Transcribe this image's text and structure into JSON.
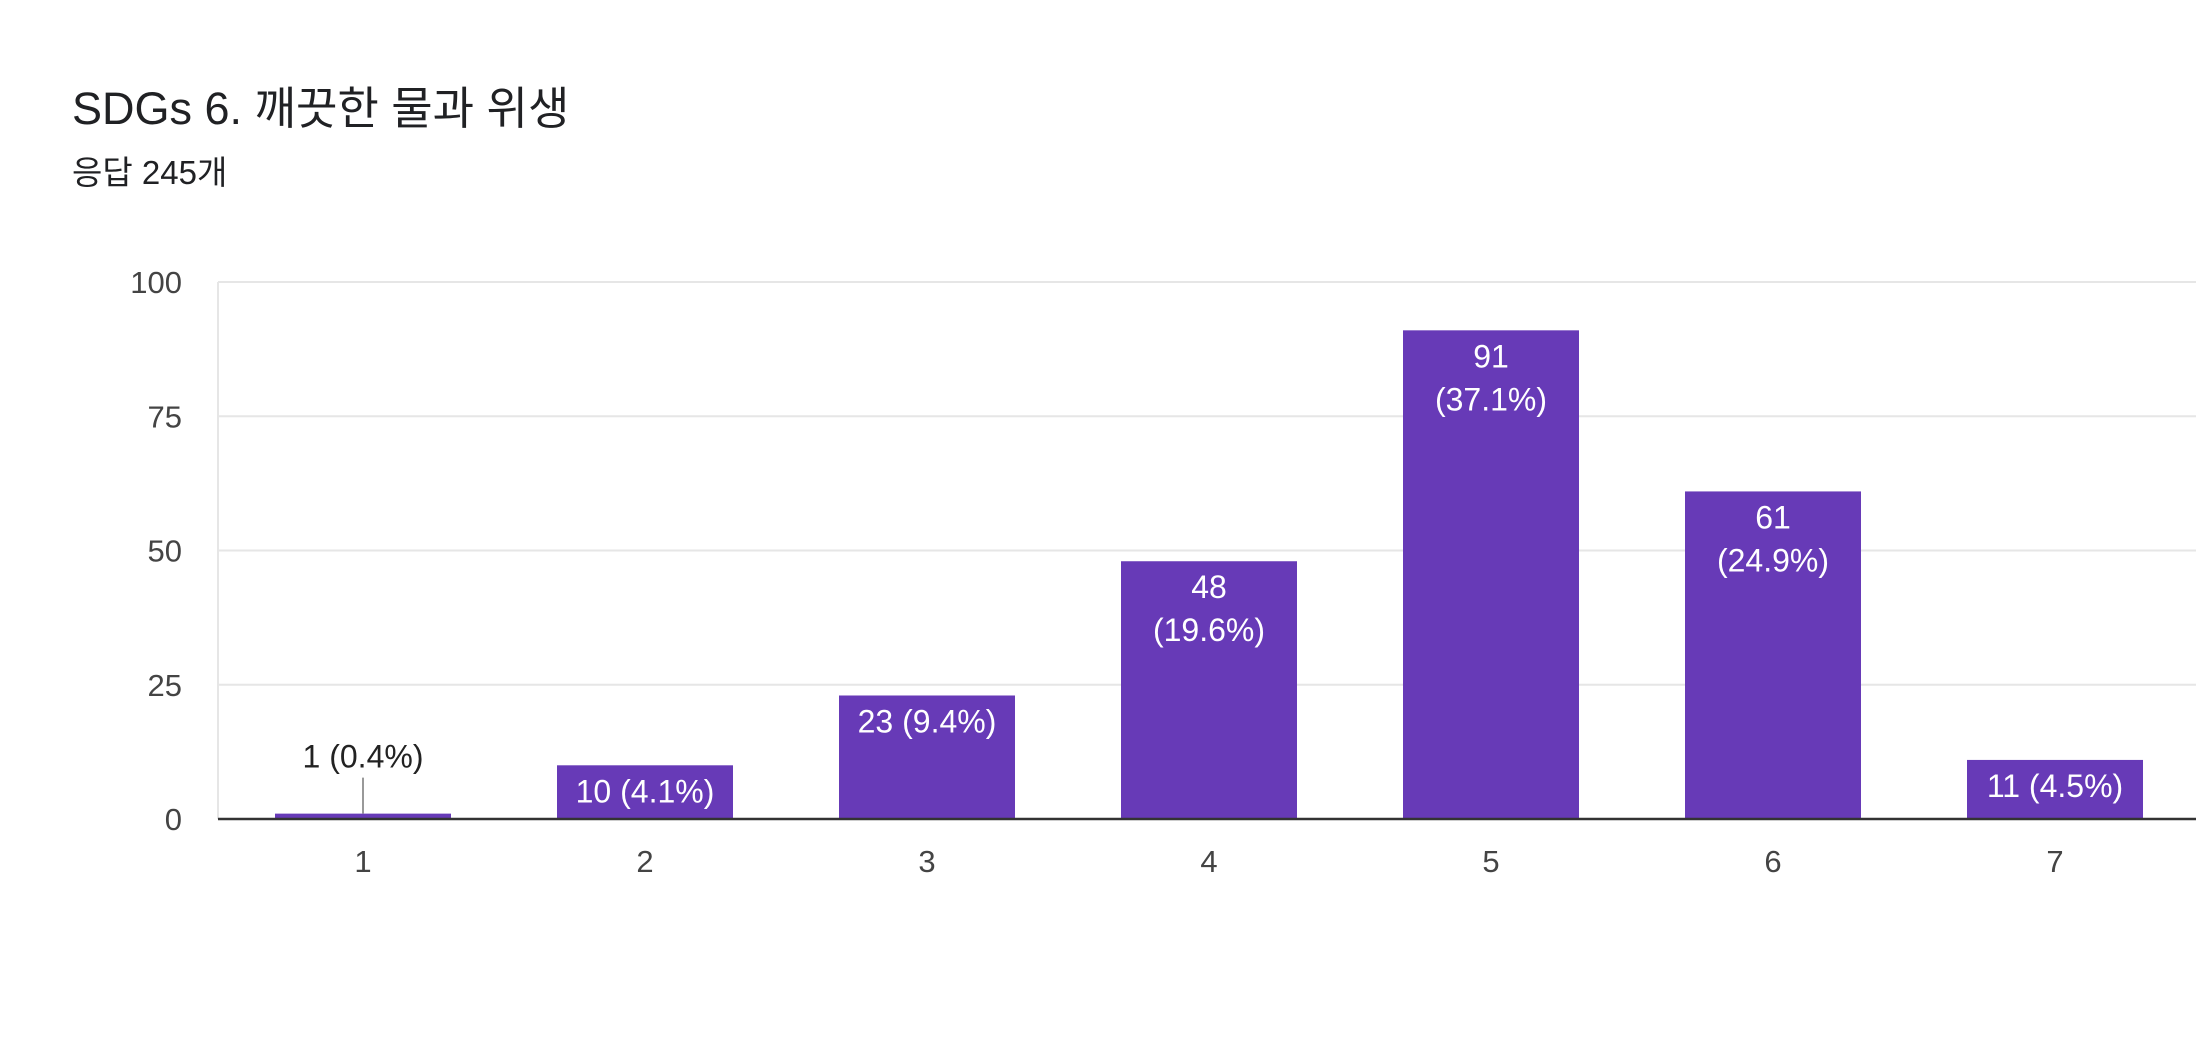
{
  "header": {
    "title": "SDGs 6. 깨끗한 물과 위생",
    "subtitle": "응답 245개"
  },
  "colors": {
    "bar": "#673ab7",
    "grid": "#e6e6e6",
    "axis": "#333333",
    "leader": "#999999"
  },
  "chart_data": {
    "type": "bar",
    "categories": [
      "1",
      "2",
      "3",
      "4",
      "5",
      "6",
      "7"
    ],
    "values": [
      1,
      10,
      23,
      48,
      91,
      61,
      11
    ],
    "data_labels": [
      [
        "1 (0.4%)"
      ],
      [
        "10 (4.1%)"
      ],
      [
        "23 (9.4%)"
      ],
      [
        "48",
        "(19.6%)"
      ],
      [
        "91",
        "(37.1%)"
      ],
      [
        "61",
        "(24.9%)"
      ],
      [
        "11 (4.5%)"
      ]
    ],
    "yticks": [
      0,
      25,
      50,
      75,
      100
    ],
    "ylim": [
      0,
      100
    ],
    "grid": true,
    "legend": "none"
  }
}
